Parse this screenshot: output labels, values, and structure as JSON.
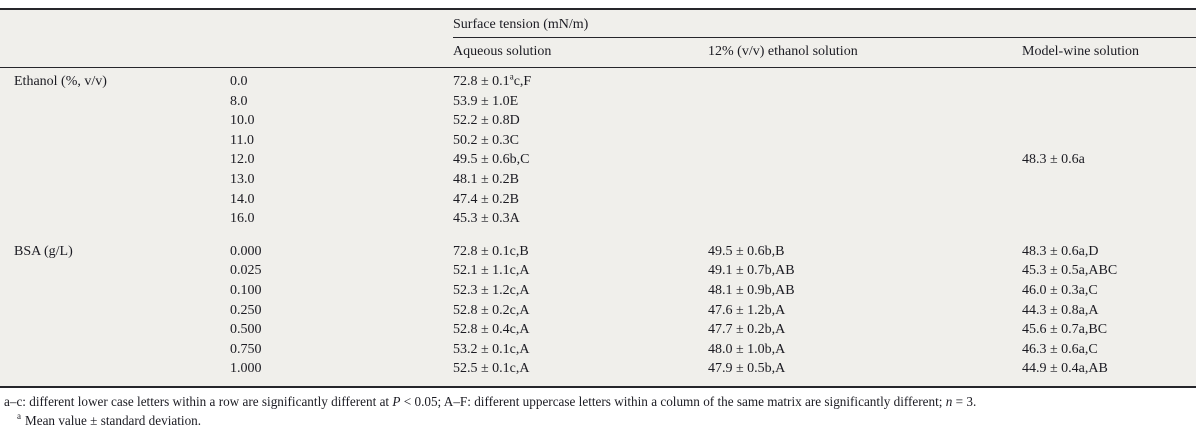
{
  "table": {
    "header": {
      "group_title": "Surface tension (mN/m)",
      "col_aqueous": "Aqueous solution",
      "col_ethanol12": "12% (v/v) ethanol solution",
      "col_modelwine": "Model-wine solution"
    },
    "rows": [
      {
        "label": "Ethanol (%, v/v)",
        "dose": "0.0",
        "aqueous_pre": "72.8 ± 0.1",
        "aqueous_sup": "a",
        "aqueous_post": "c,F",
        "eth": "",
        "wine": ""
      },
      {
        "label": "",
        "dose": "8.0",
        "aqueous": "53.9 ± 1.0E",
        "eth": "",
        "wine": ""
      },
      {
        "label": "",
        "dose": "10.0",
        "aqueous": "52.2 ± 0.8D",
        "eth": "",
        "wine": ""
      },
      {
        "label": "",
        "dose": "11.0",
        "aqueous": "50.2 ± 0.3C",
        "eth": "",
        "wine": ""
      },
      {
        "label": "",
        "dose": "12.0",
        "aqueous": "49.5 ± 0.6b,C",
        "eth": "",
        "wine": "48.3 ± 0.6a"
      },
      {
        "label": "",
        "dose": "13.0",
        "aqueous": "48.1 ± 0.2B",
        "eth": "",
        "wine": ""
      },
      {
        "label": "",
        "dose": "14.0",
        "aqueous": "47.4 ± 0.2B",
        "eth": "",
        "wine": ""
      },
      {
        "label": "",
        "dose": "16.0",
        "aqueous": "45.3 ± 0.3A",
        "eth": "",
        "wine": ""
      },
      {
        "label": "BSA (g/L)",
        "dose": "0.000",
        "aqueous": "72.8 ± 0.1c,B",
        "eth": "49.5 ± 0.6b,B",
        "wine": "48.3 ± 0.6a,D"
      },
      {
        "label": "",
        "dose": "0.025",
        "aqueous": "52.1 ± 1.1c,A",
        "eth": "49.1 ± 0.7b,AB",
        "wine": "45.3 ± 0.5a,ABC"
      },
      {
        "label": "",
        "dose": "0.100",
        "aqueous": "52.3 ± 1.2c,A",
        "eth": "48.1 ± 0.9b,AB",
        "wine": "46.0 ± 0.3a,C"
      },
      {
        "label": "",
        "dose": "0.250",
        "aqueous": "52.8 ± 0.2c,A",
        "eth": "47.6 ± 1.2b,A",
        "wine": "44.3 ± 0.8a,A"
      },
      {
        "label": "",
        "dose": "0.500",
        "aqueous": "52.8 ± 0.4c,A",
        "eth": "47.7 ± 0.2b,A",
        "wine": "45.6 ± 0.7a,BC"
      },
      {
        "label": "",
        "dose": "0.750",
        "aqueous": "53.2 ± 0.1c,A",
        "eth": "48.0 ± 1.0b,A",
        "wine": "46.3 ± 0.6a,C"
      },
      {
        "label": "",
        "dose": "1.000",
        "aqueous": "52.5 ± 0.1c,A",
        "eth": "47.9 ± 0.5b,A",
        "wine": "44.9 ± 0.4a,AB"
      }
    ]
  },
  "footnotes": {
    "note1": [
      "a–c: different lower case letters within a row are significantly different at ",
      "P",
      " < 0.05; A–F: different uppercase letters within a column of the same matrix are significantly different; ",
      "n",
      " = 3."
    ],
    "note2_marker": "a",
    "note2_text": "Mean value ± standard deviation."
  }
}
